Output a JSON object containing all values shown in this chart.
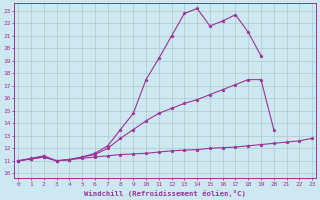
{
  "xlabel": "Windchill (Refroidissement éolien,°C)",
  "bg_color": "#cde8f0",
  "grid_color": "#b0c8d0",
  "line_color": "#993399",
  "x_ticks": [
    0,
    1,
    2,
    3,
    4,
    5,
    6,
    7,
    8,
    9,
    10,
    11,
    12,
    13,
    14,
    15,
    16,
    17,
    18,
    19,
    20,
    21,
    22,
    23
  ],
  "y_ticks": [
    10,
    11,
    12,
    13,
    14,
    15,
    16,
    17,
    18,
    19,
    20,
    21,
    22,
    23
  ],
  "xlim": [
    -0.3,
    23.3
  ],
  "ylim": [
    9.6,
    23.6
  ],
  "series": [
    {
      "x": [
        0,
        1,
        2,
        3,
        4,
        5,
        6,
        7,
        8,
        9,
        10,
        11,
        12,
        13,
        14,
        15,
        16,
        17,
        18,
        19,
        20,
        21,
        22,
        23
      ],
      "y": [
        11.0,
        11.15,
        11.3,
        11.0,
        11.1,
        11.2,
        11.3,
        11.4,
        11.5,
        11.55,
        11.6,
        11.7,
        11.8,
        11.85,
        11.9,
        12.0,
        12.05,
        12.1,
        12.2,
        12.3,
        12.4,
        12.5,
        12.6,
        12.8
      ]
    },
    {
      "x": [
        0,
        1,
        2,
        3,
        4,
        5,
        6,
        7,
        8,
        9,
        10,
        11,
        12,
        13,
        14,
        15,
        16,
        17,
        18,
        19,
        20,
        21,
        22,
        23
      ],
      "y": [
        11.0,
        11.15,
        11.3,
        11.0,
        11.1,
        11.3,
        11.5,
        12.0,
        12.8,
        13.5,
        14.2,
        14.8,
        15.2,
        15.6,
        15.9,
        16.3,
        16.7,
        17.1,
        17.5,
        17.5,
        13.5,
        null,
        null,
        null
      ]
    },
    {
      "x": [
        0,
        1,
        2,
        3,
        4,
        5,
        6,
        7,
        8,
        9,
        10,
        11,
        12,
        13,
        14,
        15,
        16,
        17,
        18,
        19,
        20,
        21,
        22,
        23
      ],
      "y": [
        11.0,
        11.2,
        11.4,
        11.0,
        11.1,
        11.3,
        11.6,
        12.2,
        13.5,
        14.8,
        17.5,
        19.2,
        21.0,
        22.8,
        23.2,
        21.8,
        22.2,
        22.7,
        21.3,
        19.4,
        null,
        null,
        null,
        null
      ]
    }
  ]
}
